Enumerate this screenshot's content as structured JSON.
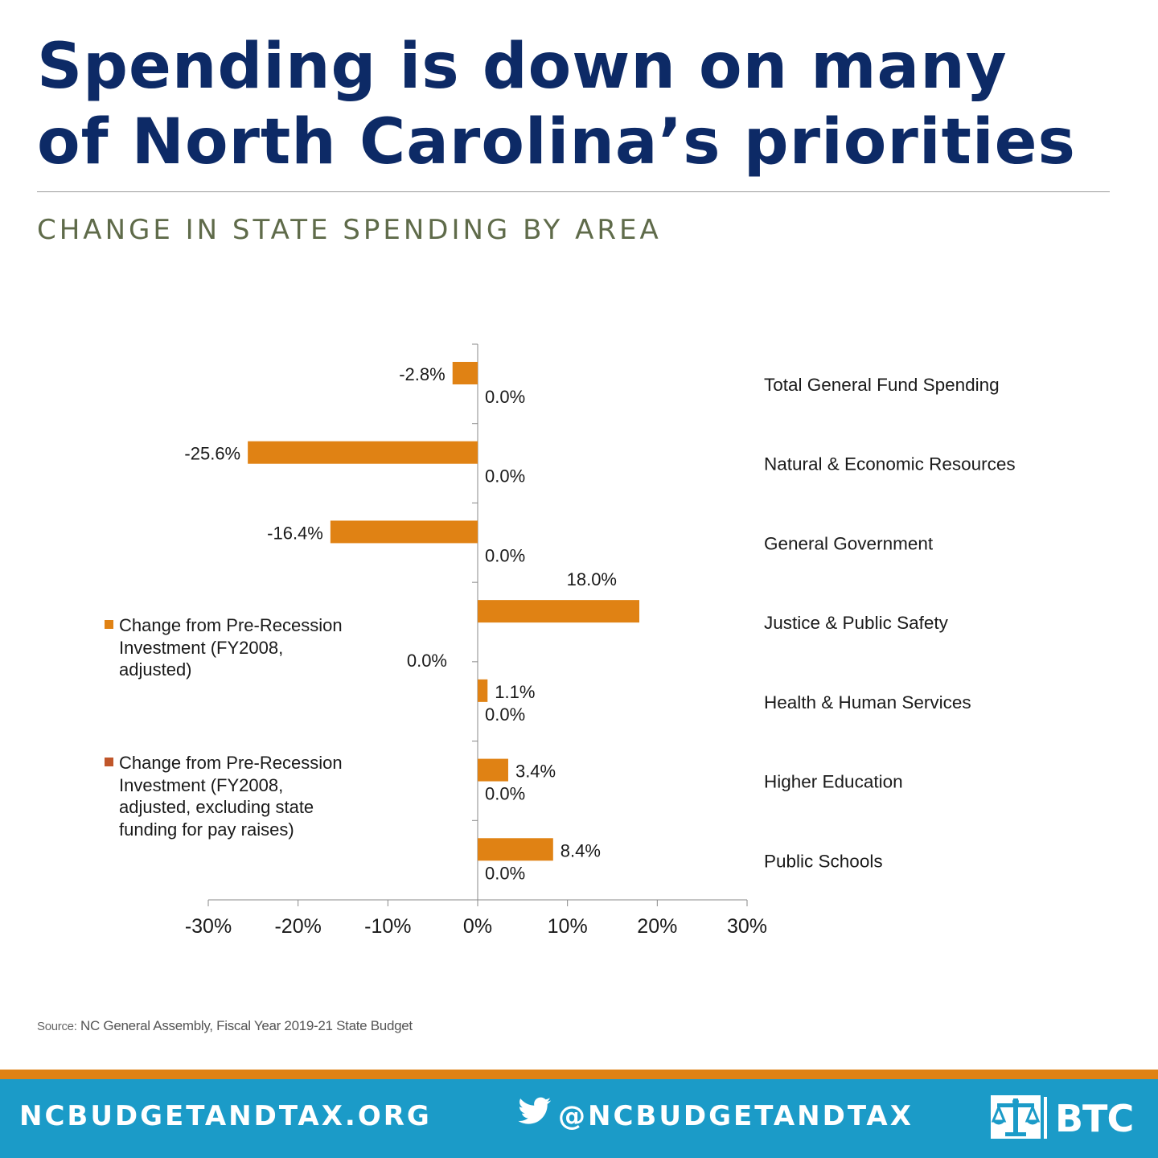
{
  "headline": {
    "line1": "Spending is down on many",
    "line2": "of North Carolina’s priorities"
  },
  "colors": {
    "navy": "#0d2a66",
    "series1": "#e08214",
    "series2": "#c0562a",
    "footer_bg": "#1b9bc8",
    "footer_stripe": "#e08214"
  },
  "chart_data": {
    "type": "bar",
    "orientation": "horizontal",
    "title": "CHANGE IN STATE SPENDING BY AREA",
    "categories": [
      "Total General Fund Spending",
      "Natural & Economic Resources",
      "General Government",
      "Justice & Public Safety",
      "Health & Human Services",
      "Higher Education",
      "Public Schools"
    ],
    "series": [
      {
        "name": "Change from Pre-Recession Investment (FY2008, adjusted)",
        "values": [
          -2.8,
          -25.6,
          -16.4,
          18.0,
          1.1,
          3.4,
          8.4
        ],
        "labels": [
          "-2.8%",
          "-25.6%",
          "-16.4%",
          "18.0%",
          "1.1%",
          "3.4%",
          "8.4%"
        ]
      },
      {
        "name": "Change from Pre-Recession Investment (FY2008, adjusted, excluding state funding for pay raises)",
        "values": [
          0.0,
          0.0,
          0.0,
          0.0,
          0.0,
          0.0,
          0.0
        ],
        "labels": [
          "0.0%",
          "0.0%",
          "0.0%",
          "0.0%",
          "0.0%",
          "0.0%",
          "0.0%"
        ]
      }
    ],
    "xlim": [
      -30,
      30
    ],
    "xticks": [
      -30,
      -20,
      -10,
      0,
      10,
      20,
      30
    ],
    "xtick_labels": [
      "-30%",
      "-20%",
      "-10%",
      "0%",
      "10%",
      "20%",
      "30%"
    ],
    "legend_placement": "left",
    "grid": false
  },
  "legend": {
    "item1": "Change from Pre-Recession Investment (FY2008, adjusted)",
    "item2": "Change from Pre-Recession Investment (FY2008, adjusted, excluding state funding for pay raises)"
  },
  "source": {
    "label": "Source:",
    "text": " NC General Assembly, Fiscal Year 2019-21 State Budget"
  },
  "footer": {
    "website": "NCBUDGETANDTAX.ORG",
    "twitter_icon": "twitter-bird-icon",
    "twitter": "@NCBUDGETANDTAX",
    "logo_text": "BTC"
  }
}
